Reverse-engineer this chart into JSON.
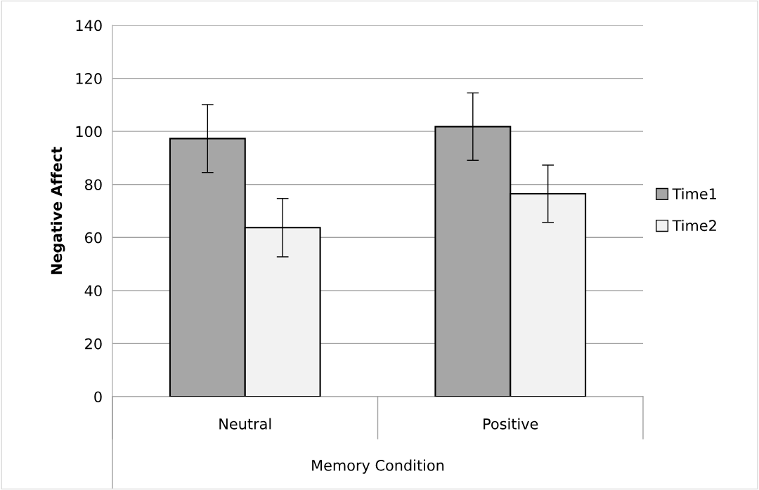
{
  "chart_data": {
    "type": "bar",
    "xlabel": "Memory Condition",
    "ylabel": "Negative Affect",
    "categories": [
      "Neutral",
      "Positive"
    ],
    "series": [
      {
        "name": "Time1",
        "color": "#a6a6a6",
        "values": [
          97.3,
          101.8
        ],
        "errors": [
          12.8,
          12.7
        ]
      },
      {
        "name": "Time2",
        "color": "#f2f2f2",
        "values": [
          63.7,
          76.5
        ],
        "errors": [
          11,
          10.8
        ]
      }
    ],
    "ylim": [
      0,
      140
    ],
    "yticks": [
      0,
      20,
      40,
      60,
      80,
      100,
      120,
      140
    ],
    "grid": "y",
    "legend": "right"
  }
}
